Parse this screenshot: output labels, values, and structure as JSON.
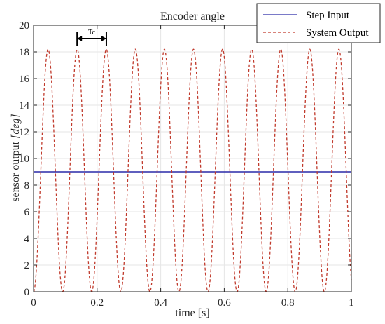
{
  "chart_data": {
    "type": "line",
    "title": "Encoder angle",
    "xlabel": "time [s]",
    "ylabel": "sensor output [deg]",
    "ylabel_plain": "sensor output ",
    "ylabel_math": "[deg]",
    "xlim": [
      0,
      1
    ],
    "ylim": [
      0,
      20
    ],
    "xticks": [
      0,
      0.2,
      0.4,
      0.6,
      0.8,
      1
    ],
    "xtick_labels": [
      "0",
      "0.2",
      "0.4",
      "0.6",
      "0.8",
      "1"
    ],
    "yticks": [
      0,
      2,
      4,
      6,
      8,
      10,
      12,
      14,
      16,
      18,
      20
    ],
    "ytick_labels": [
      "0",
      "2",
      "4",
      "6",
      "8",
      "10",
      "12",
      "14",
      "16",
      "18",
      "20"
    ],
    "grid": true,
    "legend_position": "top-right",
    "series": [
      {
        "name": "Step Input",
        "style": "solid",
        "color": "#2a2aa8",
        "x": [
          0,
          1
        ],
        "y": [
          9,
          9
        ]
      },
      {
        "name": "System Output",
        "style": "dashed",
        "color": "#c0392b",
        "model": "y = 9.1 * (1 - cos(2*pi*t/T))",
        "amplitude": 9.1,
        "offset": 9.1,
        "period": 0.0915,
        "peaks_x": [
          0.046,
          0.137,
          0.229,
          0.32,
          0.412,
          0.503,
          0.595,
          0.686,
          0.778,
          0.869,
          0.961
        ],
        "peak_y": 18.2
      }
    ],
    "annotation": {
      "text": "Tc",
      "x_start": 0.137,
      "x_end": 0.229,
      "y": 19.0
    }
  }
}
